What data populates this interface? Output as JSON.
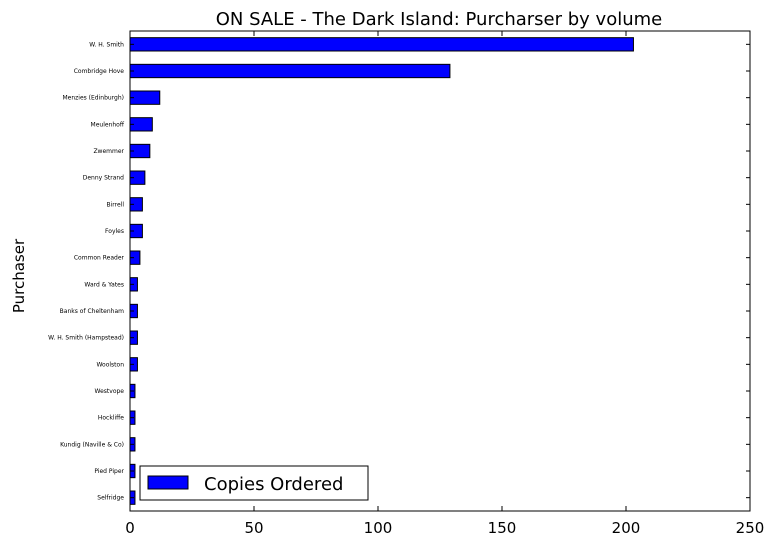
{
  "chart_data": {
    "type": "bar",
    "orientation": "horizontal",
    "title": "ON SALE - The Dark Island: Purcharser by volume",
    "xlabel": "",
    "ylabel": "Purchaser",
    "xlim": [
      0,
      250
    ],
    "xticks": [
      0,
      50,
      100,
      150,
      200,
      250
    ],
    "grid": false,
    "legend_position": "lower left",
    "bar_color": "#0000ff",
    "categories": [
      "W. H. Smith",
      "Combridge Hove",
      "Menzies (Edinburgh)",
      "Meulenhoff",
      "Zwemmer",
      "Denny Strand",
      "Birrell",
      "Foyles",
      "Common Reader",
      "Ward & Yates",
      "Banks of Cheltenham",
      "W. H. Smith (Hampstead)",
      "Woolston",
      "Westvope",
      "Hockliffe",
      "Kundig (Naville & Co)",
      "Pied Piper",
      "Selfridge"
    ],
    "series": [
      {
        "name": "Copies Ordered",
        "values": [
          203,
          129,
          12,
          9,
          8,
          6,
          5,
          5,
          4,
          3,
          3,
          3,
          3,
          2,
          2,
          2,
          2,
          2
        ]
      }
    ]
  }
}
